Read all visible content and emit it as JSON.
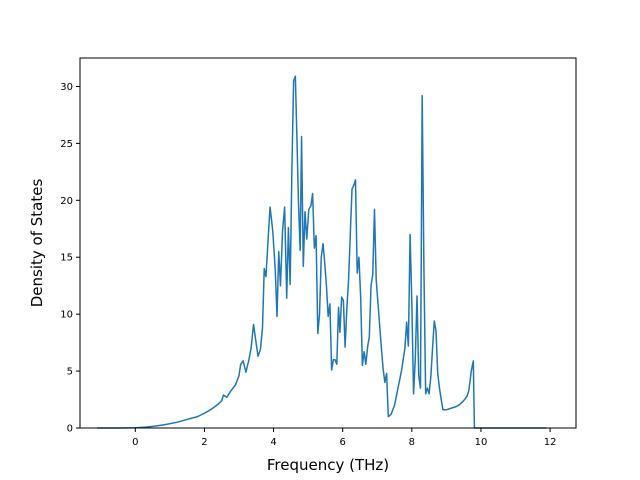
{
  "chart_data": {
    "type": "line",
    "title": "",
    "xlabel": "Frequency (THz)",
    "ylabel": "Density of States",
    "xlim": [
      -1.6,
      12.75
    ],
    "ylim": [
      0,
      32.5
    ],
    "xticks": [
      0,
      2,
      4,
      6,
      8,
      10,
      12
    ],
    "yticks": [
      0,
      5,
      10,
      15,
      20,
      25,
      30
    ],
    "grid": false,
    "legend": "none",
    "color": "#1f77b4",
    "series": [
      {
        "points": [
          [
            -1.1,
            0
          ],
          [
            -0.5,
            0
          ],
          [
            0,
            0.02
          ],
          [
            0.3,
            0.08
          ],
          [
            0.6,
            0.18
          ],
          [
            0.9,
            0.32
          ],
          [
            1.2,
            0.5
          ],
          [
            1.5,
            0.75
          ],
          [
            1.8,
            1.0
          ],
          [
            2.0,
            1.3
          ],
          [
            2.2,
            1.65
          ],
          [
            2.4,
            2.1
          ],
          [
            2.5,
            2.4
          ],
          [
            2.55,
            2.9
          ],
          [
            2.65,
            2.7
          ],
          [
            2.75,
            3.2
          ],
          [
            2.9,
            3.8
          ],
          [
            3.0,
            4.6
          ],
          [
            3.05,
            5.6
          ],
          [
            3.12,
            5.9
          ],
          [
            3.2,
            4.9
          ],
          [
            3.28,
            5.9
          ],
          [
            3.35,
            7.0
          ],
          [
            3.42,
            9.1
          ],
          [
            3.48,
            7.8
          ],
          [
            3.55,
            6.3
          ],
          [
            3.62,
            6.9
          ],
          [
            3.68,
            8.8
          ],
          [
            3.73,
            14.0
          ],
          [
            3.78,
            13.3
          ],
          [
            3.85,
            17.0
          ],
          [
            3.9,
            19.4
          ],
          [
            3.98,
            17.2
          ],
          [
            4.05,
            13.8
          ],
          [
            4.1,
            9.8
          ],
          [
            4.15,
            15.5
          ],
          [
            4.2,
            12.5
          ],
          [
            4.26,
            17.3
          ],
          [
            4.32,
            19.4
          ],
          [
            4.38,
            11.4
          ],
          [
            4.43,
            17.6
          ],
          [
            4.48,
            12.6
          ],
          [
            4.53,
            22.6
          ],
          [
            4.58,
            30.5
          ],
          [
            4.63,
            30.9
          ],
          [
            4.68,
            25.0
          ],
          [
            4.72,
            19.9
          ],
          [
            4.77,
            15.6
          ],
          [
            4.81,
            25.6
          ],
          [
            4.86,
            14.2
          ],
          [
            4.91,
            19.0
          ],
          [
            4.96,
            16.6
          ],
          [
            5.02,
            19.2
          ],
          [
            5.08,
            19.5
          ],
          [
            5.13,
            20.6
          ],
          [
            5.18,
            15.8
          ],
          [
            5.23,
            16.9
          ],
          [
            5.28,
            8.3
          ],
          [
            5.33,
            10.0
          ],
          [
            5.38,
            15.0
          ],
          [
            5.43,
            16.2
          ],
          [
            5.48,
            14.5
          ],
          [
            5.53,
            12.5
          ],
          [
            5.58,
            9.8
          ],
          [
            5.63,
            10.9
          ],
          [
            5.68,
            5.1
          ],
          [
            5.73,
            6.0
          ],
          [
            5.78,
            6.0
          ],
          [
            5.83,
            5.6
          ],
          [
            5.88,
            10.6
          ],
          [
            5.92,
            8.4
          ],
          [
            5.97,
            11.5
          ],
          [
            6.02,
            11.2
          ],
          [
            6.07,
            7.1
          ],
          [
            6.12,
            10.5
          ],
          [
            6.17,
            13.0
          ],
          [
            6.22,
            17.0
          ],
          [
            6.27,
            21.0
          ],
          [
            6.32,
            21.3
          ],
          [
            6.37,
            21.8
          ],
          [
            6.42,
            13.6
          ],
          [
            6.47,
            15.0
          ],
          [
            6.52,
            11.5
          ],
          [
            6.57,
            5.5
          ],
          [
            6.62,
            6.7
          ],
          [
            6.67,
            5.6
          ],
          [
            6.72,
            7.1
          ],
          [
            6.77,
            8.0
          ],
          [
            6.82,
            12.5
          ],
          [
            6.87,
            13.5
          ],
          [
            6.92,
            19.2
          ],
          [
            6.97,
            13.0
          ],
          [
            7.02,
            11.0
          ],
          [
            7.07,
            9.0
          ],
          [
            7.12,
            7.0
          ],
          [
            7.17,
            5.2
          ],
          [
            7.22,
            4.0
          ],
          [
            7.27,
            4.8
          ],
          [
            7.32,
            1.0
          ],
          [
            7.4,
            1.2
          ],
          [
            7.5,
            2.0
          ],
          [
            7.6,
            3.5
          ],
          [
            7.7,
            5.0
          ],
          [
            7.8,
            7.0
          ],
          [
            7.85,
            9.3
          ],
          [
            7.9,
            7.2
          ],
          [
            7.95,
            17.0
          ],
          [
            8.0,
            11.0
          ],
          [
            8.05,
            3.0
          ],
          [
            8.1,
            6.0
          ],
          [
            8.15,
            11.6
          ],
          [
            8.2,
            4.6
          ],
          [
            8.25,
            3.5
          ],
          [
            8.3,
            29.2
          ],
          [
            8.35,
            14.0
          ],
          [
            8.4,
            3.0
          ],
          [
            8.45,
            3.5
          ],
          [
            8.5,
            3.0
          ],
          [
            8.55,
            4.5
          ],
          [
            8.6,
            7.0
          ],
          [
            8.65,
            9.4
          ],
          [
            8.7,
            8.5
          ],
          [
            8.75,
            4.8
          ],
          [
            8.8,
            3.5
          ],
          [
            8.85,
            2.5
          ],
          [
            8.9,
            1.6
          ],
          [
            9.0,
            1.6
          ],
          [
            9.1,
            1.7
          ],
          [
            9.2,
            1.8
          ],
          [
            9.3,
            1.9
          ],
          [
            9.4,
            2.1
          ],
          [
            9.5,
            2.4
          ],
          [
            9.6,
            2.8
          ],
          [
            9.65,
            3.3
          ],
          [
            9.72,
            5.0
          ],
          [
            9.78,
            5.9
          ],
          [
            9.81,
            0
          ],
          [
            10.0,
            0
          ],
          [
            11.0,
            0
          ],
          [
            11.9,
            0
          ]
        ]
      }
    ]
  }
}
